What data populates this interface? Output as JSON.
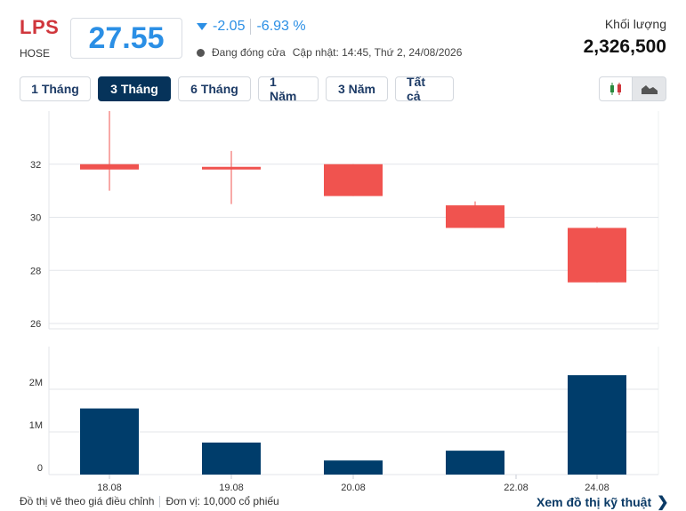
{
  "header": {
    "ticker": "LPS",
    "exchange": "HOSE",
    "price": "27.55",
    "change": "-2.05",
    "change_pct": "-6.93 %",
    "status": "Đang đóng cửa",
    "updated": "Cập nhật: 14:45, Thứ 2, 24/08/2026",
    "volume_label": "Khối lượng",
    "volume_value": "2,326,500"
  },
  "tabs": [
    {
      "label": "1 Tháng",
      "active": false
    },
    {
      "label": "3 Tháng",
      "active": true
    },
    {
      "label": "6 Tháng",
      "active": false
    },
    {
      "label": "1 Năm",
      "active": false
    },
    {
      "label": "3 Năm",
      "active": false
    },
    {
      "label": "Tất cả",
      "active": false
    }
  ],
  "chart_type_buttons": [
    {
      "icon": "candlestick-icon",
      "active": false
    },
    {
      "icon": "area-chart-icon",
      "active": true
    }
  ],
  "footer": {
    "note": "Đồ thị vẽ theo giá điều chỉnh",
    "unit": "Đơn vị: 10,000 cổ phiếu",
    "tech_link": "Xem đồ thị kỹ thuật",
    "tech_link_chevron": "❯"
  },
  "colors": {
    "down": "#f0534f",
    "volume": "#003d6b",
    "price": "#2b8fe5",
    "ticker": "#d0363c",
    "active_tab": "#06335a"
  },
  "chart_data": [
    {
      "type": "candlestick",
      "categories": [
        "18.08",
        "19.08",
        "20.08",
        "22.08",
        "24.08"
      ],
      "series": [
        {
          "open": 32.0,
          "high": 34.0,
          "low": 31.0,
          "close": 31.8
        },
        {
          "open": 31.9,
          "high": 32.5,
          "low": 30.5,
          "close": 31.8
        },
        {
          "open": 32.0,
          "high": 32.0,
          "low": 30.8,
          "close": 30.8
        },
        {
          "open": 30.45,
          "high": 30.6,
          "low": 29.6,
          "close": 29.6
        },
        {
          "open": 29.6,
          "high": 29.65,
          "low": 27.55,
          "close": 27.55
        }
      ],
      "yticks": [
        26,
        28,
        30,
        32
      ],
      "ylim": [
        25.8,
        34.0
      ],
      "grid": true
    },
    {
      "type": "bar",
      "categories": [
        "18.08",
        "19.08",
        "20.08",
        "22.08",
        "24.08"
      ],
      "values": [
        1.55,
        0.75,
        0.33,
        0.56,
        2.33
      ],
      "yticks": [
        "0",
        "1M",
        "2M"
      ],
      "ytick_values": [
        0,
        1,
        2
      ],
      "ylim": [
        0,
        3.0
      ],
      "grid": true
    }
  ]
}
